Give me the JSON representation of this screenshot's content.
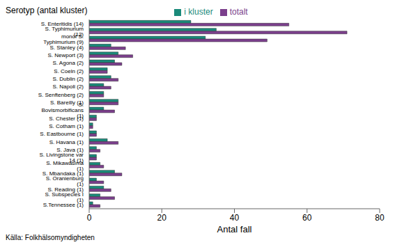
{
  "chart_data": {
    "type": "bar",
    "orientation": "horizontal",
    "title": "Serotyp (antal kluster)",
    "xlabel": "Antal fall",
    "source": "Källa: Folkhälsomyndigheten",
    "categories": [
      "S. Enteritidis (14)",
      "S. Typhimurium (12)",
      "monof S. Typhimurium (9)",
      "S. Stanley (4)",
      "S. Newport (3)",
      "S. Agona (2)",
      "S. Coeln (2)",
      "S. Dublin (2)",
      "S. Napoli (2)",
      "S. Senftenberg (2)",
      "S. Bareilly (1)",
      "S. Bovismorbificans (1)",
      "S. Chester (1)",
      "S. Cotham (1)",
      "S. Eastbourne (1)",
      "S. Havana (1)",
      "S. Java (1)",
      "S. Livingstone var 14 (1)",
      "S. Mikawasima (1)",
      "S. Mbandaka (1)",
      "S. Oranienburg (1)",
      "S. Reading (1)",
      "S. Subspecies I (1)",
      "S.Tennessee (1)"
    ],
    "series": [
      {
        "name": "i kluster",
        "color": "#1a8a7a",
        "values": [
          28,
          35,
          32,
          6,
          8,
          7,
          5,
          6,
          4,
          4,
          8,
          4,
          2,
          1,
          2,
          5,
          2,
          2,
          3,
          7,
          2,
          4,
          3,
          1
        ]
      },
      {
        "name": "totalt",
        "color": "#7b3f8c",
        "values": [
          55,
          71,
          49,
          10,
          12,
          9,
          5,
          8,
          6,
          4,
          8,
          7,
          2,
          1,
          2,
          8,
          3,
          2,
          4,
          9,
          4,
          6,
          7,
          3
        ]
      }
    ],
    "xlim": [
      0,
      80
    ],
    "xticks": [
      0,
      20,
      40,
      60,
      80
    ],
    "legend": "top",
    "grid": false
  }
}
